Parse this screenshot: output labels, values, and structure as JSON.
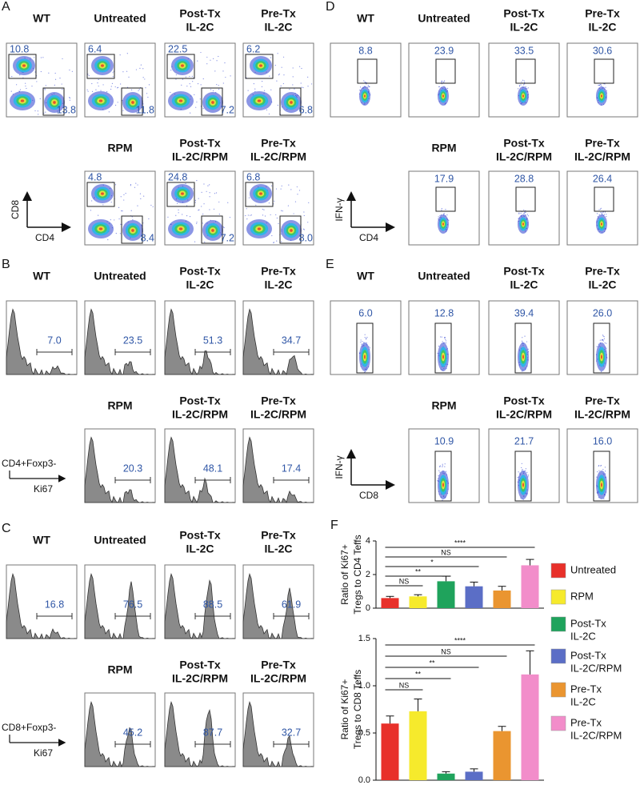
{
  "panels": [
    {
      "label": "A",
      "axis": {
        "y": "CD8",
        "x": "CD4"
      },
      "row1": [
        {
          "title": [
            "WT"
          ],
          "values": [
            "10.8",
            "13.8"
          ]
        },
        {
          "title": [
            "Untreated"
          ],
          "values": [
            "6.4",
            "11.8"
          ]
        },
        {
          "title": [
            "Post-Tx",
            "IL-2C"
          ],
          "values": [
            "22.5",
            "7.2"
          ]
        },
        {
          "title": [
            "Pre-Tx",
            "IL-2C"
          ],
          "values": [
            "6.2",
            "6.8"
          ]
        }
      ],
      "row2": [
        {
          "title": [
            "RPM"
          ],
          "values": [
            "4.8",
            "8.4"
          ]
        },
        {
          "title": [
            "Post-Tx",
            "IL-2C/RPM"
          ],
          "values": [
            "24.8",
            "7.2"
          ]
        },
        {
          "title": [
            "Pre-Tx",
            "IL-2C/RPM"
          ],
          "values": [
            "6.8",
            "8.0"
          ]
        }
      ]
    },
    {
      "label": "B",
      "axis": {
        "population": "CD4+Foxp3-",
        "marker": "Ki67"
      },
      "row1": [
        {
          "title": [
            "WT"
          ],
          "values": [
            "7.0"
          ]
        },
        {
          "title": [
            "Untreated"
          ],
          "values": [
            "23.5"
          ]
        },
        {
          "title": [
            "Post-Tx",
            "IL-2C"
          ],
          "values": [
            "51.3"
          ]
        },
        {
          "title": [
            "Pre-Tx",
            "IL-2C"
          ],
          "values": [
            "34.7"
          ]
        }
      ],
      "row2": [
        {
          "title": [
            "RPM"
          ],
          "values": [
            "20.3"
          ]
        },
        {
          "title": [
            "Post-Tx",
            "IL-2C/RPM"
          ],
          "values": [
            "48.1"
          ]
        },
        {
          "title": [
            "Pre-Tx",
            "IL-2C/RPM"
          ],
          "values": [
            "17.4"
          ]
        }
      ]
    },
    {
      "label": "C",
      "axis": {
        "population": "CD8+Foxp3-",
        "marker": "Ki67"
      },
      "row1": [
        {
          "title": [
            "WT"
          ],
          "values": [
            "16.8"
          ]
        },
        {
          "title": [
            "Untreated"
          ],
          "values": [
            "76.5"
          ]
        },
        {
          "title": [
            "Post-Tx",
            "IL-2C"
          ],
          "values": [
            "88.5"
          ]
        },
        {
          "title": [
            "Pre-Tx",
            "IL-2C"
          ],
          "values": [
            "61.9"
          ]
        }
      ],
      "row2": [
        {
          "title": [
            "RPM"
          ],
          "values": [
            "45.2"
          ]
        },
        {
          "title": [
            "Post-Tx",
            "IL-2C/RPM"
          ],
          "values": [
            "87.7"
          ]
        },
        {
          "title": [
            "Pre-Tx",
            "IL-2C/RPM"
          ],
          "values": [
            "32.7"
          ]
        }
      ]
    },
    {
      "label": "D",
      "axis": {
        "y": "IFN-γ",
        "x": "CD4"
      },
      "row1": [
        {
          "title": [
            "WT"
          ],
          "values": [
            "8.8"
          ]
        },
        {
          "title": [
            "Untreated"
          ],
          "values": [
            "23.9"
          ]
        },
        {
          "title": [
            "Post-Tx",
            "IL-2C"
          ],
          "values": [
            "33.5"
          ]
        },
        {
          "title": [
            "Pre-Tx",
            "IL-2C"
          ],
          "values": [
            "30.6"
          ]
        }
      ],
      "row2": [
        {
          "title": [
            "RPM"
          ],
          "values": [
            "17.9"
          ]
        },
        {
          "title": [
            "Post-Tx",
            "IL-2C/RPM"
          ],
          "values": [
            "28.8"
          ]
        },
        {
          "title": [
            "Pre-Tx",
            "IL-2C/RPM"
          ],
          "values": [
            "26.4"
          ]
        }
      ]
    },
    {
      "label": "E",
      "axis": {
        "y": "IFN-γ",
        "x": "CD8"
      },
      "row1": [
        {
          "title": [
            "WT"
          ],
          "values": [
            "6.0"
          ]
        },
        {
          "title": [
            "Untreated"
          ],
          "values": [
            "12.8"
          ]
        },
        {
          "title": [
            "Post-Tx",
            "IL-2C"
          ],
          "values": [
            "39.4"
          ]
        },
        {
          "title": [
            "Pre-Tx",
            "IL-2C"
          ],
          "values": [
            "26.0"
          ]
        }
      ],
      "row2": [
        {
          "title": [
            "RPM"
          ],
          "values": [
            "10.9"
          ]
        },
        {
          "title": [
            "Post-Tx",
            "IL-2C/RPM"
          ],
          "values": [
            "21.7"
          ]
        },
        {
          "title": [
            "Pre-Tx",
            "IL-2C/RPM"
          ],
          "values": [
            "16.0"
          ]
        }
      ]
    },
    {
      "label": "F",
      "legend": [
        [
          "Untreated"
        ],
        [
          "RPM"
        ],
        [
          "Post-Tx",
          "IL-2C"
        ],
        [
          "Post-Tx",
          "IL-2C/RPM"
        ],
        [
          "Pre-Tx",
          "IL-2C"
        ],
        [
          "Pre-Tx",
          "IL-2C/RPM"
        ]
      ],
      "colors": [
        "#e8302a",
        "#f6ea2c",
        "#1fa35c",
        "#5b6ec6",
        "#ea9530",
        "#f28dca"
      ],
      "charts": [
        {
          "type": "bar",
          "y_label": [
            "Ratio of Ki67+",
            "Tregs to CD4 Teffs"
          ],
          "ylim": [
            0,
            4
          ],
          "yticks": [
            0,
            2,
            4
          ],
          "values": [
            0.6,
            0.7,
            1.6,
            1.3,
            1.05,
            2.55
          ],
          "errors": [
            0.1,
            0.1,
            0.3,
            0.25,
            0.25,
            0.35
          ],
          "significance": [
            "NS",
            "**",
            "*",
            "NS",
            "****"
          ]
        },
        {
          "type": "bar",
          "y_label": [
            "Ratio of Ki67+",
            "Tregs to CD8 Teffs"
          ],
          "ylim": [
            0,
            1.5
          ],
          "yticks": [
            {
              "value": 0,
              "label": "0.0"
            },
            {
              "value": 0.5,
              "label": "0.5"
            },
            {
              "value": 1,
              "label": "1.0"
            },
            {
              "value": 1.5,
              "label": "1.5"
            }
          ],
          "values": [
            0.6,
            0.73,
            0.07,
            0.09,
            0.52,
            1.12
          ],
          "errors": [
            0.08,
            0.13,
            0.02,
            0.03,
            0.05,
            0.25
          ],
          "significance": [
            "NS",
            "**",
            "**",
            "NS",
            "****"
          ]
        }
      ]
    }
  ]
}
